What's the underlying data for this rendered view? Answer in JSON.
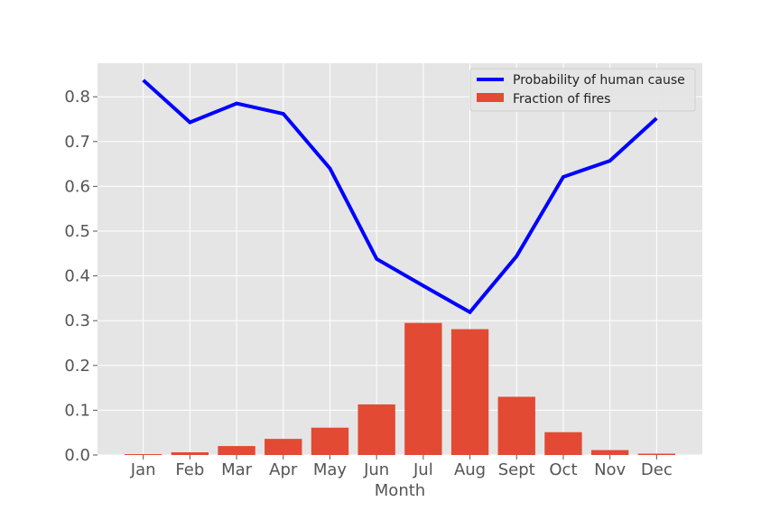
{
  "chart_data": {
    "type": "bar",
    "categories": [
      "Jan",
      "Feb",
      "Mar",
      "Apr",
      "May",
      "Jun",
      "Jul",
      "Aug",
      "Sept",
      "Oct",
      "Nov",
      "Dec"
    ],
    "series": [
      {
        "name": "Fraction of fires",
        "type": "bar",
        "color": "#E24A33",
        "values": [
          0.002,
          0.006,
          0.02,
          0.036,
          0.061,
          0.113,
          0.295,
          0.281,
          0.13,
          0.051,
          0.011,
          0.003
        ]
      },
      {
        "name": "Probability of human cause",
        "type": "line",
        "color": "#0000FF",
        "values": [
          0.837,
          0.743,
          0.785,
          0.762,
          0.64,
          0.438,
          0.378,
          0.319,
          0.444,
          0.621,
          0.657,
          0.752
        ]
      }
    ],
    "xlabel": "Month",
    "ylabel": "",
    "ylim": [
      0,
      0.875
    ],
    "yticks": [
      "0.0",
      "0.1",
      "0.2",
      "0.3",
      "0.4",
      "0.5",
      "0.6",
      "0.7",
      "0.8"
    ],
    "grid": true,
    "legend_position": "top-right",
    "background": "#E5E5E5"
  }
}
